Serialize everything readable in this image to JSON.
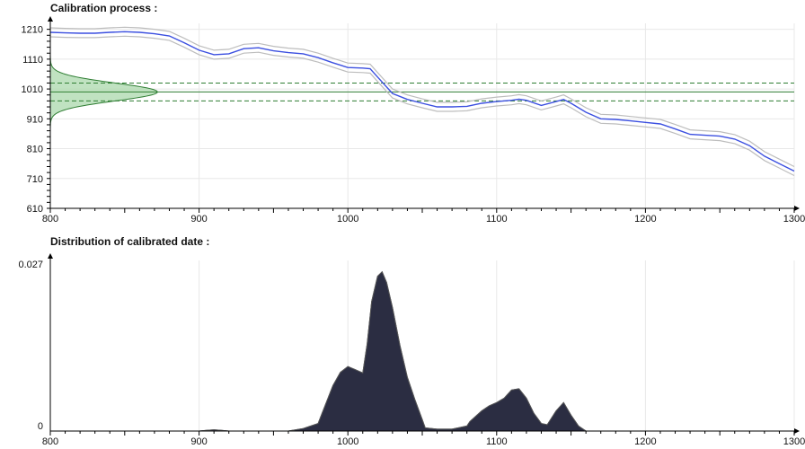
{
  "colors": {
    "curve": "#3b4fe0",
    "curve_band": "#bdbdbd",
    "measure_line": "#2e7d32",
    "measure_fill": "#a5d6a7",
    "distribution_fill": "#2b2d42",
    "grid": "#e8e8e8",
    "axis": "#000000"
  },
  "chart_data": [
    {
      "type": "line",
      "title": "Calibration process :",
      "xlim": [
        800,
        1300
      ],
      "ylim": [
        610,
        1230
      ],
      "x_ticks": [
        800,
        900,
        1000,
        1100,
        1200,
        1300
      ],
      "y_ticks": [
        610,
        710,
        810,
        910,
        1010,
        1110,
        1210
      ],
      "grid": true,
      "measured_value": 1000,
      "measured_band": [
        970,
        1030
      ],
      "measured_density_peak_x": 872,
      "series": [
        {
          "x": [
            800,
            810,
            820,
            830,
            840,
            850,
            860,
            870,
            880,
            890,
            900,
            910,
            920,
            930,
            940,
            950,
            960,
            970,
            980,
            990,
            1000,
            1010,
            1015,
            1020,
            1030,
            1040,
            1050,
            1060,
            1070,
            1080,
            1090,
            1100,
            1110,
            1115,
            1120,
            1130,
            1140,
            1145,
            1150,
            1160,
            1170,
            1180,
            1190,
            1200,
            1210,
            1220,
            1230,
            1240,
            1250,
            1260,
            1270,
            1280,
            1290,
            1300
          ],
          "values": [
            1200,
            1198,
            1197,
            1197,
            1200,
            1202,
            1200,
            1195,
            1188,
            1165,
            1140,
            1125,
            1128,
            1145,
            1148,
            1138,
            1132,
            1128,
            1115,
            1098,
            1082,
            1080,
            1078,
            1050,
            995,
            975,
            962,
            950,
            950,
            952,
            962,
            968,
            972,
            976,
            972,
            955,
            968,
            975,
            962,
            932,
            910,
            908,
            903,
            898,
            893,
            876,
            858,
            855,
            852,
            842,
            820,
            785,
            760,
            735
          ]
        }
      ],
      "band_offset": 15
    },
    {
      "type": "area",
      "title": "Distribution of calibrated date :",
      "xlim": [
        800,
        1300
      ],
      "ylim": [
        0,
        0.027
      ],
      "x_ticks": [
        800,
        900,
        1000,
        1100,
        1200,
        1300
      ],
      "y_ticks": [
        0,
        0.027
      ],
      "grid": true,
      "series": [
        {
          "x": [
            800,
            900,
            905,
            910,
            915,
            920,
            960,
            970,
            980,
            983,
            986,
            990,
            995,
            1000,
            1005,
            1010,
            1013,
            1016,
            1020,
            1023,
            1026,
            1030,
            1035,
            1040,
            1045,
            1050,
            1052,
            1060,
            1070,
            1080,
            1082,
            1090,
            1095,
            1100,
            1105,
            1110,
            1115,
            1120,
            1125,
            1130,
            1134,
            1140,
            1145,
            1150,
            1155,
            1160,
            1300
          ],
          "values": [
            0,
            0,
            0.0001,
            0.0002,
            0.0001,
            0,
            0,
            0.0004,
            0.0012,
            0.003,
            0.0048,
            0.0072,
            0.0093,
            0.0102,
            0.0097,
            0.0092,
            0.0138,
            0.0205,
            0.0245,
            0.0252,
            0.0235,
            0.0195,
            0.0135,
            0.0085,
            0.005,
            0.0018,
            0.0005,
            0.0003,
            0.0003,
            0.0008,
            0.0015,
            0.0032,
            0.004,
            0.0045,
            0.0052,
            0.0065,
            0.0067,
            0.0052,
            0.0028,
            0.0012,
            0.001,
            0.0032,
            0.0045,
            0.0025,
            0.0008,
            0,
            0
          ]
        }
      ]
    }
  ]
}
